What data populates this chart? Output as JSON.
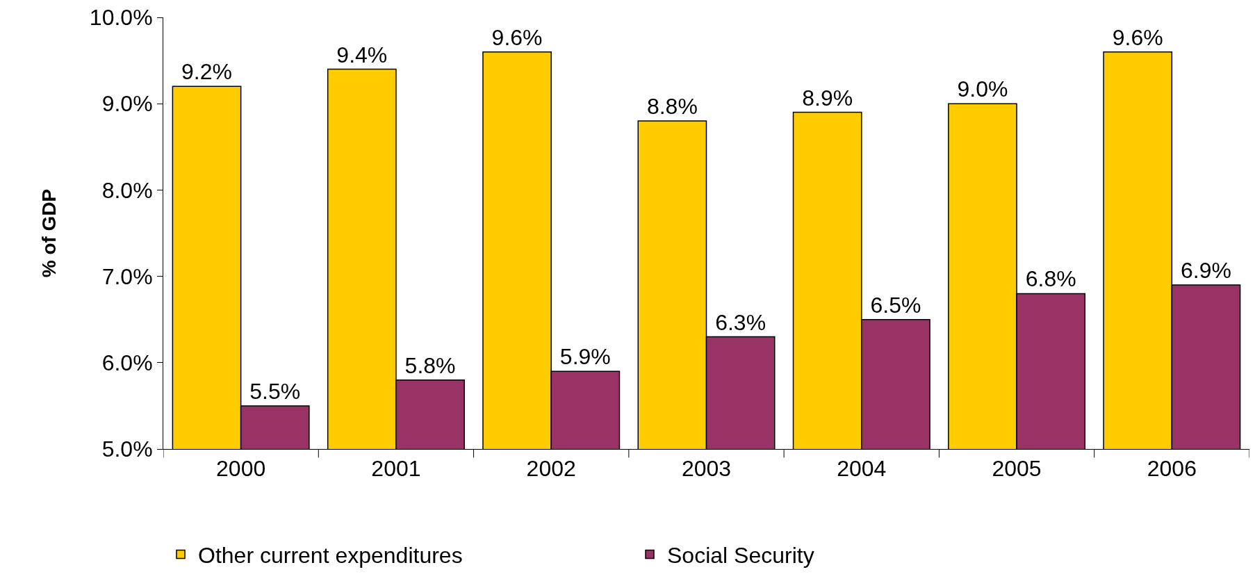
{
  "chart_data": {
    "type": "bar",
    "ylabel": "% of GDP",
    "categories": [
      "2000",
      "2001",
      "2002",
      "2003",
      "2004",
      "2005",
      "2006"
    ],
    "series": [
      {
        "name": "Other current expenditures",
        "color": "#ffcc00",
        "values": [
          9.2,
          9.4,
          9.6,
          8.8,
          8.9,
          9.0,
          9.6
        ],
        "value_labels": [
          "9.2%",
          "9.4%",
          "9.6%",
          "8.8%",
          "8.9%",
          "9.0%",
          "9.6%"
        ]
      },
      {
        "name": "Social Security",
        "color": "#993366",
        "values": [
          5.5,
          5.8,
          5.9,
          6.3,
          6.5,
          6.8,
          6.9
        ],
        "value_labels": [
          "5.5%",
          "5.8%",
          "5.9%",
          "6.3%",
          "6.5%",
          "6.8%",
          "6.9%"
        ]
      }
    ],
    "ylim": [
      5,
      10
    ],
    "yticks": [
      {
        "value": 5,
        "label": "5.0%"
      },
      {
        "value": 6,
        "label": "6.0%"
      },
      {
        "value": 7,
        "label": "7.0%"
      },
      {
        "value": 8,
        "label": "8.0%"
      },
      {
        "value": 9,
        "label": "9.0%"
      },
      {
        "value": 10,
        "label": "10.0%"
      }
    ],
    "grid": false,
    "legend": "bottom"
  }
}
